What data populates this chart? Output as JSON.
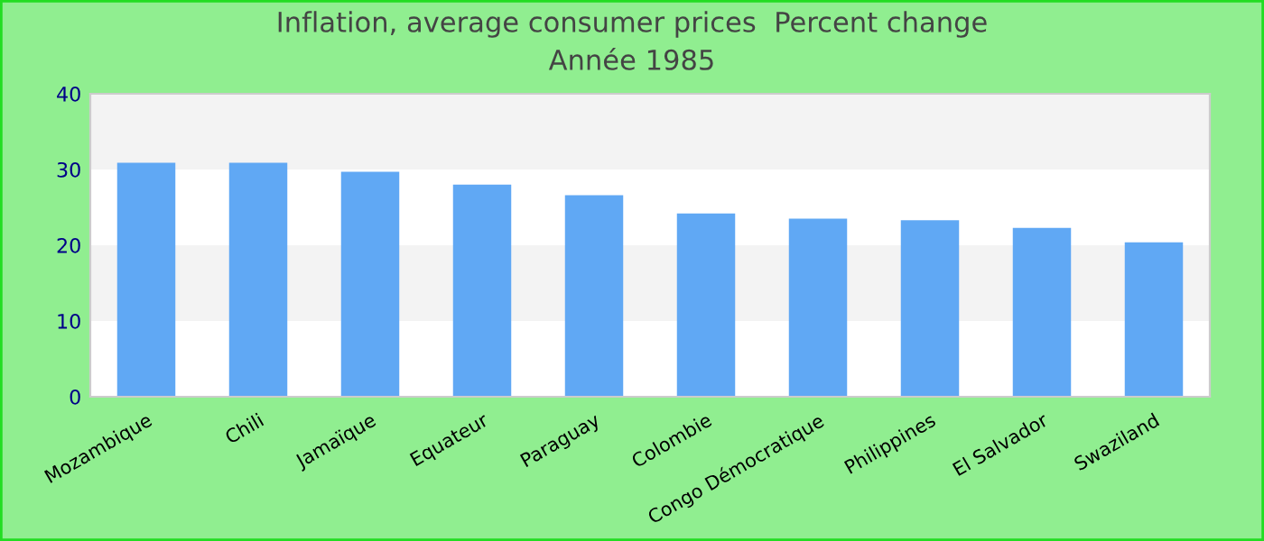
{
  "chart_data": {
    "type": "bar",
    "title": "Inflation, average consumer prices  Percent change",
    "subtitle": "Année 1985",
    "categories": [
      "Mozambique",
      "Chili",
      "Jamaïque",
      "Equateur",
      "Paraguay",
      "Colombie",
      "Congo Démocratique",
      "Philippines",
      "El Salvador",
      "Swaziland"
    ],
    "values": [
      30.9,
      30.9,
      29.7,
      28.0,
      26.6,
      24.2,
      23.5,
      23.3,
      22.3,
      20.4
    ],
    "color": "#60a8f4",
    "ylim": [
      0,
      40
    ],
    "yticks": [
      0,
      10,
      20,
      30,
      40
    ]
  }
}
